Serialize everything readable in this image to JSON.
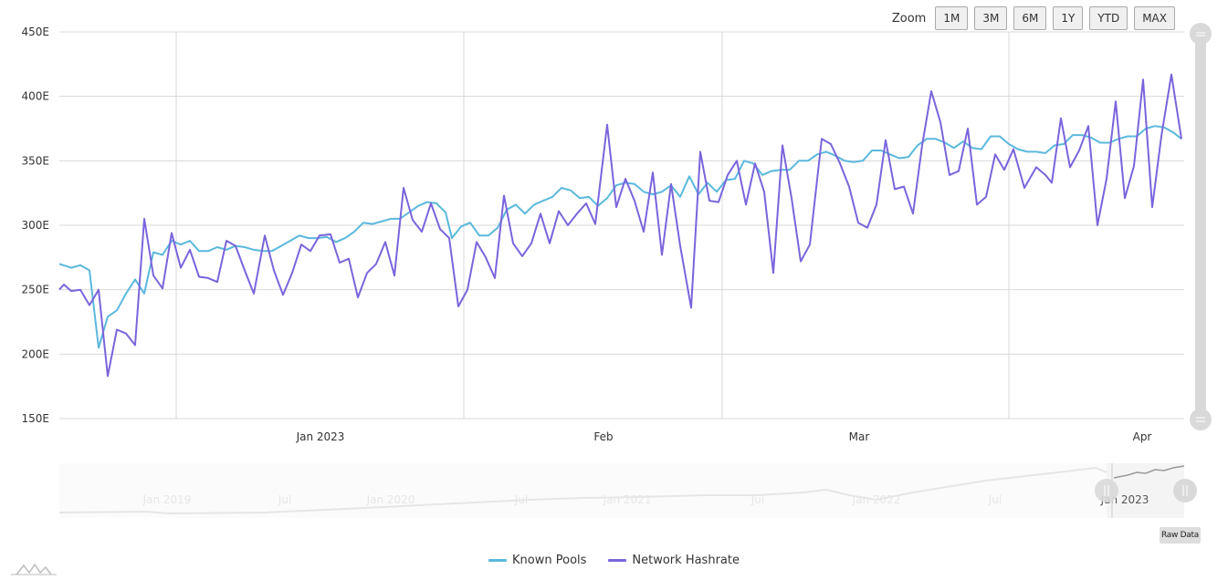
{
  "toolbar": {
    "zoom_label": "Zoom",
    "buttons": [
      "1M",
      "3M",
      "6M",
      "1Y",
      "YTD",
      "MAX"
    ],
    "raw_data_label": "Raw Data"
  },
  "colors": {
    "known_pools": "#5bb8dd",
    "network_hashrate": "#7b64dc",
    "grid": "#d8d8d8",
    "scrollbar": "#d9d9d9"
  },
  "chart_data": {
    "type": "line",
    "title": "",
    "xlabel": "",
    "ylabel": "",
    "x_units": "days since Jan 1 2023",
    "xlim": [
      -28.6,
      94.6
    ],
    "ylim": [
      150,
      450
    ],
    "yticks": [
      150,
      200,
      250,
      300,
      350,
      400,
      450
    ],
    "ytick_suffix": "E",
    "xticks": [
      {
        "day": 0,
        "label": "Jan 2023"
      },
      {
        "day": 31,
        "label": "Feb"
      },
      {
        "day": 59,
        "label": "Mar"
      },
      {
        "day": 90,
        "label": "Apr"
      }
    ],
    "legend_position": "bottom-center",
    "grid": true,
    "series": [
      {
        "name": "Known Pools",
        "color": "#5bb8dd",
        "points": [
          [
            -28.6,
            270
          ],
          [
            -27.3,
            267
          ],
          [
            -26.3,
            269
          ],
          [
            -25.3,
            265
          ],
          [
            -24.3,
            205
          ],
          [
            -23.3,
            229
          ],
          [
            -22.3,
            234
          ],
          [
            -21.3,
            247
          ],
          [
            -20.3,
            258
          ],
          [
            -19.3,
            247
          ],
          [
            -18.3,
            279
          ],
          [
            -17.3,
            277
          ],
          [
            -16.3,
            288
          ],
          [
            -15.3,
            285
          ],
          [
            -14.3,
            288
          ],
          [
            -13.3,
            280
          ],
          [
            -12.3,
            280
          ],
          [
            -11.3,
            283
          ],
          [
            -10.3,
            281
          ],
          [
            -9.3,
            284
          ],
          [
            -8.3,
            283
          ],
          [
            -7.3,
            281
          ],
          [
            -6.3,
            280
          ],
          [
            -5.3,
            280
          ],
          [
            -4.3,
            284
          ],
          [
            -3.3,
            288
          ],
          [
            -2.3,
            292
          ],
          [
            -1.3,
            290
          ],
          [
            -0.3,
            290
          ],
          [
            0.7,
            291
          ],
          [
            1.7,
            287
          ],
          [
            2.7,
            290
          ],
          [
            3.7,
            295
          ],
          [
            4.7,
            302
          ],
          [
            5.7,
            301
          ],
          [
            6.7,
            303
          ],
          [
            7.7,
            305
          ],
          [
            8.7,
            305
          ],
          [
            9.7,
            310
          ],
          [
            10.7,
            315
          ],
          [
            11.7,
            318
          ],
          [
            12.7,
            317
          ],
          [
            13.7,
            310
          ],
          [
            14.4,
            290
          ],
          [
            15.4,
            299
          ],
          [
            16.4,
            302
          ],
          [
            17.4,
            292
          ],
          [
            18.4,
            292
          ],
          [
            19.4,
            298
          ],
          [
            20.4,
            312
          ],
          [
            21.4,
            316
          ],
          [
            22.4,
            309
          ],
          [
            23.4,
            316
          ],
          [
            24.4,
            319
          ],
          [
            25.4,
            322
          ],
          [
            26.4,
            329
          ],
          [
            27.4,
            327
          ],
          [
            28.4,
            321
          ],
          [
            29.4,
            322
          ],
          [
            30.4,
            315
          ],
          [
            31.4,
            321
          ],
          [
            32.4,
            331
          ],
          [
            33.4,
            333
          ],
          [
            34.4,
            332
          ],
          [
            35.4,
            326
          ],
          [
            36.4,
            324
          ],
          [
            37.4,
            326
          ],
          [
            38.4,
            331
          ],
          [
            39.4,
            322
          ],
          [
            40.4,
            338
          ],
          [
            41.4,
            324
          ],
          [
            42.4,
            333
          ],
          [
            43.4,
            326
          ],
          [
            44.4,
            335
          ],
          [
            45.4,
            336
          ],
          [
            46.4,
            350
          ],
          [
            47.4,
            348
          ],
          [
            48.4,
            339
          ],
          [
            49.4,
            342
          ],
          [
            50.4,
            343
          ],
          [
            51.4,
            343
          ],
          [
            52.4,
            350
          ],
          [
            53.4,
            350
          ],
          [
            54.4,
            355
          ],
          [
            55.4,
            357
          ],
          [
            56.4,
            354
          ],
          [
            57.4,
            350
          ],
          [
            58.4,
            349
          ],
          [
            59.4,
            350
          ],
          [
            60.4,
            358
          ],
          [
            61.4,
            358
          ],
          [
            62.4,
            355
          ],
          [
            63.4,
            352
          ],
          [
            64.4,
            353
          ],
          [
            65.4,
            362
          ],
          [
            66.4,
            367
          ],
          [
            67.4,
            367
          ],
          [
            68.4,
            364
          ],
          [
            69.4,
            360
          ],
          [
            70.4,
            365
          ],
          [
            71.4,
            360
          ],
          [
            72.4,
            359
          ],
          [
            73.4,
            369
          ],
          [
            74.4,
            369
          ],
          [
            75.4,
            363
          ],
          [
            76.4,
            359
          ],
          [
            77.4,
            357
          ],
          [
            78.4,
            357
          ],
          [
            79.4,
            356
          ],
          [
            80.4,
            362
          ],
          [
            81.4,
            363
          ],
          [
            82.4,
            370
          ],
          [
            83.4,
            370
          ],
          [
            84.4,
            368
          ],
          [
            85.4,
            364
          ],
          [
            86.4,
            364
          ],
          [
            87.4,
            367
          ],
          [
            88.4,
            369
          ],
          [
            89.4,
            369
          ],
          [
            90.4,
            375
          ],
          [
            91.4,
            377
          ],
          [
            92.4,
            376
          ],
          [
            93.4,
            372
          ],
          [
            94.3,
            367
          ]
        ]
      },
      {
        "name": "Network Hashrate",
        "color": "#7b64dc",
        "points": [
          [
            -28.6,
            250
          ],
          [
            -28.1,
            254
          ],
          [
            -27.3,
            249
          ],
          [
            -26.3,
            250
          ],
          [
            -25.3,
            238
          ],
          [
            -24.3,
            250
          ],
          [
            -23.3,
            183
          ],
          [
            -22.3,
            219
          ],
          [
            -21.3,
            216
          ],
          [
            -20.3,
            207
          ],
          [
            -19.3,
            305
          ],
          [
            -18.3,
            261
          ],
          [
            -17.3,
            251
          ],
          [
            -16.3,
            294
          ],
          [
            -15.3,
            267
          ],
          [
            -14.3,
            281
          ],
          [
            -13.3,
            260
          ],
          [
            -12.3,
            259
          ],
          [
            -11.3,
            256
          ],
          [
            -10.3,
            288
          ],
          [
            -9.3,
            284
          ],
          [
            -8.3,
            265
          ],
          [
            -7.3,
            247
          ],
          [
            -6.1,
            292
          ],
          [
            -5.1,
            265
          ],
          [
            -4.1,
            246
          ],
          [
            -3.1,
            263
          ],
          [
            -2.1,
            285
          ],
          [
            -1.1,
            280
          ],
          [
            -0.1,
            292
          ],
          [
            1.1,
            293
          ],
          [
            2.1,
            271
          ],
          [
            3.1,
            274
          ],
          [
            4.1,
            244
          ],
          [
            5.1,
            263
          ],
          [
            6.1,
            270
          ],
          [
            7.1,
            287
          ],
          [
            8.1,
            261
          ],
          [
            9.1,
            329
          ],
          [
            10.1,
            304
          ],
          [
            11.1,
            295
          ],
          [
            12.1,
            317
          ],
          [
            13.1,
            297
          ],
          [
            14.1,
            290
          ],
          [
            15.1,
            237
          ],
          [
            16.1,
            250
          ],
          [
            17.1,
            287
          ],
          [
            18.1,
            275
          ],
          [
            19.1,
            259
          ],
          [
            20.1,
            323
          ],
          [
            21.1,
            286
          ],
          [
            22.1,
            276
          ],
          [
            23.1,
            286
          ],
          [
            24.1,
            309
          ],
          [
            25.1,
            286
          ],
          [
            26.1,
            311
          ],
          [
            27.1,
            300
          ],
          [
            28.1,
            309
          ],
          [
            29.1,
            317
          ],
          [
            30.1,
            301
          ],
          [
            31.4,
            378
          ],
          [
            32.4,
            314
          ],
          [
            33.4,
            336
          ],
          [
            34.4,
            319
          ],
          [
            35.4,
            295
          ],
          [
            36.4,
            341
          ],
          [
            37.4,
            277
          ],
          [
            38.4,
            332
          ],
          [
            39.4,
            284
          ],
          [
            40.6,
            236
          ],
          [
            41.6,
            357
          ],
          [
            42.6,
            319
          ],
          [
            43.6,
            318
          ],
          [
            44.6,
            339
          ],
          [
            45.6,
            350
          ],
          [
            46.6,
            316
          ],
          [
            47.6,
            348
          ],
          [
            48.6,
            326
          ],
          [
            49.6,
            263
          ],
          [
            50.6,
            362
          ],
          [
            51.6,
            321
          ],
          [
            52.6,
            272
          ],
          [
            53.6,
            285
          ],
          [
            54.9,
            367
          ],
          [
            55.9,
            363
          ],
          [
            56.9,
            348
          ],
          [
            57.9,
            330
          ],
          [
            58.9,
            302
          ],
          [
            59.9,
            298
          ],
          [
            60.9,
            316
          ],
          [
            61.9,
            366
          ],
          [
            62.9,
            328
          ],
          [
            63.9,
            330
          ],
          [
            64.9,
            309
          ],
          [
            65.9,
            362
          ],
          [
            66.9,
            404
          ],
          [
            67.9,
            380
          ],
          [
            68.9,
            339
          ],
          [
            69.9,
            342
          ],
          [
            70.9,
            375
          ],
          [
            71.9,
            316
          ],
          [
            72.9,
            322
          ],
          [
            73.9,
            355
          ],
          [
            74.9,
            343
          ],
          [
            75.9,
            359
          ],
          [
            77.1,
            329
          ],
          [
            78.4,
            345
          ],
          [
            79.4,
            339
          ],
          [
            80.1,
            333
          ],
          [
            81.1,
            383
          ],
          [
            82.1,
            345
          ],
          [
            83.1,
            358
          ],
          [
            84.1,
            377
          ],
          [
            85.1,
            300
          ],
          [
            86.1,
            336
          ],
          [
            87.1,
            396
          ],
          [
            88.1,
            321
          ],
          [
            89.1,
            346
          ],
          [
            90.1,
            413
          ],
          [
            91.1,
            314
          ],
          [
            92.1,
            369
          ],
          [
            93.2,
            417
          ],
          [
            94.3,
            367
          ]
        ]
      }
    ]
  },
  "navigator": {
    "labels": [
      "Jan 2019",
      "Jul",
      "Jan 2020",
      "Jul",
      "Jan 2021",
      "Jul",
      "Jan 2022",
      "Jul",
      "Jan 2023"
    ]
  }
}
